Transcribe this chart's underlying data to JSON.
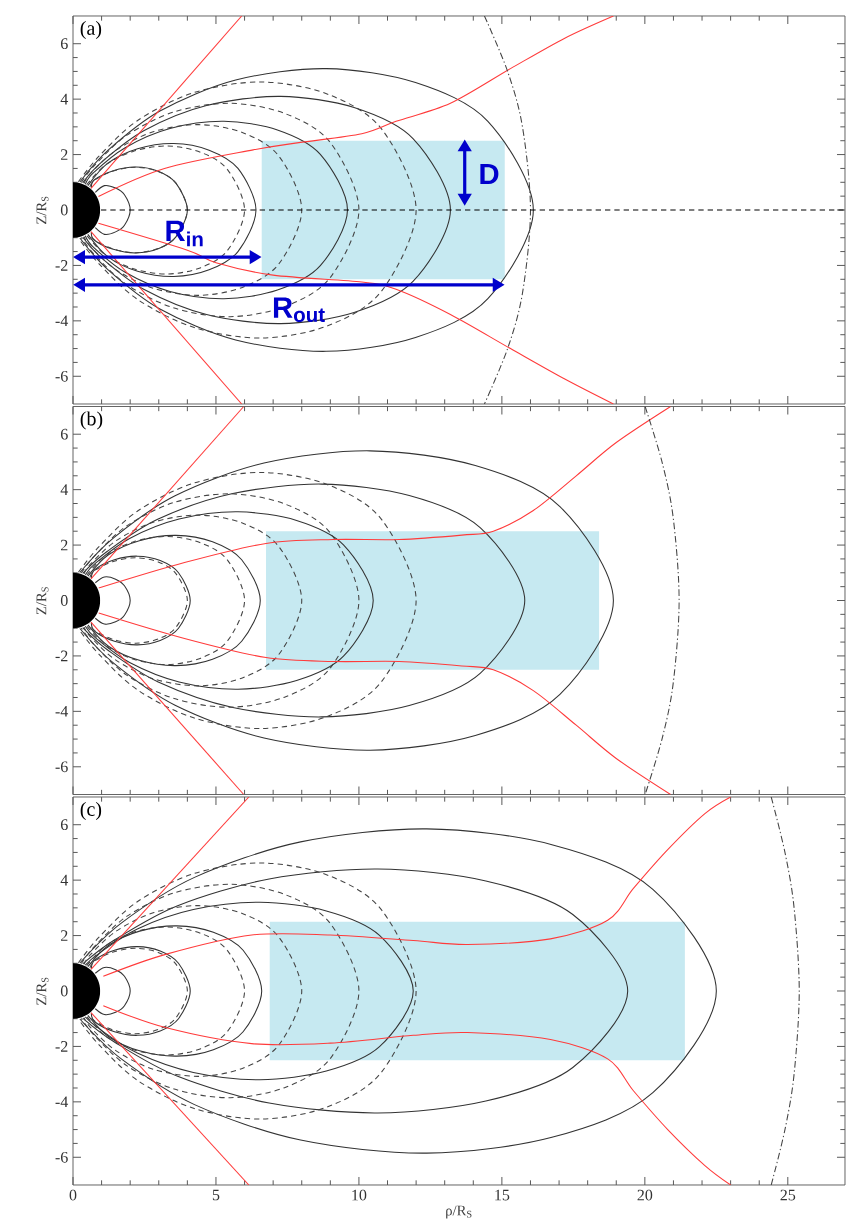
{
  "chart_data": [
    {
      "type": "line",
      "title": "(a)",
      "ylabel": "Z/R$_{S}$",
      "xlim": [
        0,
        27
      ],
      "ylim": [
        -7,
        7
      ],
      "xticks": [
        0,
        5,
        10,
        15,
        20,
        25
      ],
      "yticks": [
        -6,
        -4,
        -2,
        0,
        2,
        4,
        6
      ],
      "tick_labels": "y",
      "ref_lines": [
        {
          "axis": "y",
          "value": 0,
          "color": "#000000",
          "line_style": "dashed"
        }
      ],
      "annotations": [
        "R$_{in}$",
        "R$_{out}$",
        "D"
      ],
      "series": [
        {
          "type": "area",
          "color": "#c6e9f1",
          "x": [
            6.6,
            6.6,
            15.1,
            15.1
          ],
          "values": [
            -2.5,
            2.5,
            2.5,
            -2.5
          ]
        },
        {
          "color": "#333333",
          "x": [
            0.78,
            1.1,
            1.49,
            1.8,
            2.0,
            1.8,
            1.49,
            1.1,
            0.78
          ],
          "values": [
            0.64,
            0.88,
            0.79,
            0.55,
            0,
            -0.55,
            -0.79,
            -0.88,
            -0.64
          ]
        },
        {
          "color": "#333333",
          "x": [
            0.64,
            0.75,
            1.41,
            2.2,
            2.98,
            3.6,
            4.0,
            3.6,
            2.98,
            2.2,
            1.41,
            0.75,
            0.64
          ],
          "values": [
            0.8,
            1.09,
            1.42,
            1.55,
            1.4,
            0.97,
            0,
            -0.97,
            -1.4,
            -1.55,
            -1.42,
            -1.09,
            -0.8
          ]
        },
        {
          "color": "#333333",
          "x": [
            0.52,
            1.21,
            2.26,
            3.52,
            4.76,
            5.77,
            6.4,
            5.77,
            4.76,
            3.52,
            2.26,
            1.21,
            0.52
          ],
          "values": [
            0.88,
            1.68,
            2.21,
            2.4,
            2.16,
            1.5,
            0,
            -1.5,
            -2.16,
            -2.4,
            -2.21,
            -1.68,
            -0.88
          ]
        },
        {
          "color": "#333333",
          "x": [
            0.43,
            0.72,
            1.81,
            3.39,
            5.28,
            7.15,
            8.65,
            9.6,
            8.65,
            7.15,
            5.28,
            3.39,
            1.81,
            0.72,
            0.43
          ],
          "values": [
            0.93,
            1.35,
            2.24,
            2.94,
            3.2,
            2.89,
            2.01,
            0,
            -2.01,
            -2.89,
            -3.2,
            -2.94,
            -2.24,
            -1.35,
            -0.93
          ]
        },
        {
          "color": "#333333",
          "x": [
            0.34,
            1.0,
            2.49,
            4.67,
            7.26,
            9.83,
            11.9,
            13.2,
            11.9,
            9.83,
            7.26,
            4.67,
            2.49,
            1.0,
            0.34
          ],
          "values": [
            0.98,
            1.73,
            2.87,
            3.77,
            4.1,
            3.7,
            2.57,
            0,
            -2.57,
            -3.7,
            -4.1,
            -3.77,
            -2.87,
            -1.73,
            -0.98
          ]
        },
        {
          "color": "#333333",
          "x": [
            0.24,
            1.22,
            3.04,
            5.69,
            8.85,
            11.98,
            14.51,
            16.1,
            14.51,
            11.98,
            8.85,
            5.69,
            3.04,
            1.22,
            0.24
          ],
          "values": [
            1.01,
            2.15,
            3.57,
            4.69,
            5.1,
            4.6,
            3.2,
            0,
            -3.2,
            -4.6,
            -5.1,
            -4.69,
            -3.57,
            -2.15,
            -1.01
          ]
        },
        {
          "color": "#444444",
          "line_style": "dashed",
          "x": [
            0.59,
            0.75,
            1.41,
            2.2,
            2.98,
            3.6,
            4,
            3.6,
            2.98,
            2.2,
            1.41,
            0.75,
            0.59
          ],
          "values": [
            0.83,
            1.08,
            1.41,
            1.54,
            1.39,
            0.97,
            0,
            -0.97,
            -1.39,
            -1.54,
            -1.41,
            -1.08,
            -0.83
          ]
        },
        {
          "color": "#444444",
          "line_style": "dashed",
          "x": [
            0.48,
            1.13,
            2.12,
            3.3,
            4.47,
            5.41,
            6,
            5.41,
            4.47,
            3.3,
            2.12,
            1.13,
            0.48
          ],
          "values": [
            0.91,
            1.62,
            2.12,
            2.31,
            2.08,
            1.45,
            0,
            -1.45,
            -2.08,
            -2.31,
            -2.12,
            -1.62,
            -0.91
          ]
        },
        {
          "color": "#444444",
          "line_style": "dashed",
          "x": [
            0.39,
            0.6,
            1.51,
            2.83,
            4.4,
            5.96,
            7.21,
            8,
            7.21,
            5.96,
            4.4,
            2.83,
            1.51,
            0.6,
            0.39
          ],
          "values": [
            0.96,
            1.3,
            2.16,
            2.83,
            3.08,
            2.78,
            1.93,
            0,
            -1.93,
            -2.78,
            -3.08,
            -2.83,
            -2.16,
            -1.3,
            -0.96
          ]
        },
        {
          "color": "#444444",
          "line_style": "dashed",
          "x": [
            0.29,
            0.76,
            1.89,
            3.54,
            5.5,
            7.44,
            9.01,
            10,
            9.01,
            7.44,
            5.5,
            3.54,
            1.89,
            0.76,
            0.29
          ],
          "values": [
            0.99,
            1.62,
            2.7,
            3.54,
            3.85,
            3.47,
            2.42,
            0,
            -2.42,
            -3.47,
            -3.85,
            -3.54,
            -2.7,
            -1.62,
            -0.99
          ]
        },
        {
          "color": "#444444",
          "line_style": "dashed",
          "x": [
            0.19,
            0.91,
            2.26,
            4.24,
            6.6,
            8.93,
            10.81,
            12,
            10.81,
            8.93,
            6.6,
            4.24,
            2.26,
            0.91,
            0.19
          ],
          "values": [
            1.02,
            1.94,
            3.23,
            4.24,
            4.62,
            4.17,
            2.9,
            0,
            -2.9,
            -4.17,
            -4.62,
            -4.24,
            -3.23,
            -1.94,
            -1.02
          ]
        },
        {
          "color": "#ff3b3b",
          "x": [
            0.63,
            5.9
          ],
          "values": [
            0.78,
            7
          ]
        },
        {
          "color": "#ff3b3b",
          "x": [
            0.63,
            5.9
          ],
          "values": [
            -0.78,
            -7
          ]
        },
        {
          "color": "#ff3b3b",
          "x": [
            0.89,
            3.2,
            6.3,
            7.9,
            10.1,
            11.3,
            13.2,
            15.3,
            17.2,
            18.9
          ],
          "values": [
            0.49,
            1.5,
            2.17,
            2.43,
            2.75,
            3.2,
            3.85,
            5.1,
            6.2,
            7
          ]
        },
        {
          "color": "#ff3b3b",
          "x": [
            0.89,
            4.0,
            5.0,
            7.0,
            10.1,
            11.3,
            13.2,
            15.3,
            17.2,
            18.9
          ],
          "values": [
            -0.48,
            -1.45,
            -1.9,
            -2.35,
            -2.6,
            -2.86,
            -3.77,
            -5.0,
            -6.1,
            -7
          ]
        },
        {
          "color": "#444444",
          "line_style": "dashdot",
          "x": [
            14.39,
            15.2,
            15.72,
            16,
            15.72,
            15.2,
            14.39
          ],
          "values": [
            7,
            5,
            3,
            0,
            -3,
            -5,
            -7
          ]
        }
      ]
    },
    {
      "type": "line",
      "title": "(b)",
      "ylabel": "Z/R$_{S}$",
      "xlim": [
        0,
        27
      ],
      "ylim": [
        -7,
        7
      ],
      "xticks": [
        0,
        5,
        10,
        15,
        20,
        25
      ],
      "yticks": [
        -6,
        -4,
        -2,
        0,
        2,
        4,
        6
      ],
      "tick_labels": "y",
      "series": [
        {
          "type": "area",
          "color": "#c6e9f1",
          "x": [
            6.75,
            6.75,
            18.4,
            18.4
          ],
          "values": [
            -2.5,
            2.5,
            2.5,
            -2.5
          ]
        },
        {
          "color": "#333333",
          "x": [
            0.78,
            1.1,
            1.49,
            1.8,
            2.0,
            1.8,
            1.49,
            1.1,
            0.78
          ],
          "values": [
            0.64,
            0.85,
            0.77,
            0.53,
            0,
            -0.53,
            -0.77,
            -0.85,
            -0.64
          ]
        },
        {
          "color": "#333333",
          "x": [
            0.64,
            0.77,
            1.45,
            2.25,
            3.05,
            3.69,
            4.1,
            3.69,
            3.05,
            2.25,
            1.45,
            0.77,
            0.64
          ],
          "values": [
            0.8,
            1.12,
            1.47,
            1.6,
            1.44,
            1.0,
            0,
            -1.0,
            -1.44,
            -1.6,
            -1.47,
            -1.12,
            -0.8
          ]
        },
        {
          "color": "#333333",
          "x": [
            0.52,
            1.24,
            2.32,
            3.6,
            4.88,
            5.9,
            6.55,
            5.9,
            4.88,
            3.6,
            2.32,
            1.24,
            0.52
          ],
          "values": [
            0.88,
            1.65,
            2.16,
            2.35,
            2.12,
            1.47,
            0,
            -1.47,
            -2.12,
            -2.35,
            -2.16,
            -1.65,
            -0.88
          ]
        },
        {
          "color": "#333333",
          "x": [
            0.43,
            0.79,
            1.98,
            3.71,
            5.77,
            7.82,
            9.46,
            10.5,
            9.46,
            7.82,
            5.77,
            3.71,
            1.98,
            0.79,
            0.43
          ],
          "values": [
            0.93,
            1.35,
            2.24,
            2.94,
            3.2,
            2.89,
            2.01,
            0,
            -2.01,
            -2.89,
            -3.2,
            -2.94,
            -2.24,
            -1.35,
            -0.93
          ]
        },
        {
          "color": "#333333",
          "x": [
            0.34,
            1.19,
            2.98,
            5.59,
            8.69,
            11.76,
            14.24,
            15.8,
            14.24,
            11.76,
            8.69,
            5.59,
            2.98,
            1.19,
            0.34
          ],
          "values": [
            0.98,
            1.77,
            2.94,
            3.86,
            4.2,
            3.79,
            2.63,
            0,
            -2.63,
            -3.79,
            -4.2,
            -3.86,
            -2.94,
            -1.77,
            -0.98
          ]
        },
        {
          "color": "#333333",
          "x": [
            0.24,
            1.43,
            3.57,
            6.68,
            10.39,
            14.07,
            17.03,
            18.9,
            17.03,
            14.07,
            10.39,
            6.68,
            3.57,
            1.43,
            0.24
          ],
          "values": [
            1.01,
            2.27,
            3.78,
            4.96,
            5.4,
            4.87,
            3.39,
            0,
            -3.39,
            -4.87,
            -5.4,
            -4.96,
            -3.78,
            -2.27,
            -1.01
          ]
        },
        {
          "color": "#444444",
          "line_style": "dashed",
          "x": [
            0.59,
            0.75,
            1.41,
            2.2,
            2.98,
            3.6,
            4,
            3.6,
            2.98,
            2.2,
            1.41,
            0.75,
            0.59
          ],
          "values": [
            0.83,
            1.08,
            1.41,
            1.54,
            1.39,
            0.97,
            0,
            -0.97,
            -1.39,
            -1.54,
            -1.41,
            -1.08,
            -0.83
          ]
        },
        {
          "color": "#444444",
          "line_style": "dashed",
          "x": [
            0.48,
            1.13,
            2.12,
            3.3,
            4.47,
            5.41,
            6,
            5.41,
            4.47,
            3.3,
            2.12,
            1.13,
            0.48
          ],
          "values": [
            0.91,
            1.62,
            2.12,
            2.31,
            2.08,
            1.45,
            0,
            -1.45,
            -2.08,
            -2.31,
            -2.12,
            -1.62,
            -0.91
          ]
        },
        {
          "color": "#444444",
          "line_style": "dashed",
          "x": [
            0.39,
            0.6,
            1.51,
            2.83,
            4.4,
            5.96,
            7.21,
            8,
            7.21,
            5.96,
            4.4,
            2.83,
            1.51,
            0.6,
            0.39
          ],
          "values": [
            0.96,
            1.3,
            2.16,
            2.83,
            3.08,
            2.78,
            1.93,
            0,
            -1.93,
            -2.78,
            -3.08,
            -2.83,
            -2.16,
            -1.3,
            -0.96
          ]
        },
        {
          "color": "#444444",
          "line_style": "dashed",
          "x": [
            0.29,
            0.76,
            1.89,
            3.54,
            5.5,
            7.44,
            9.01,
            10,
            9.01,
            7.44,
            5.5,
            3.54,
            1.89,
            0.76,
            0.29
          ],
          "values": [
            0.99,
            1.62,
            2.7,
            3.54,
            3.85,
            3.47,
            2.42,
            0,
            -2.42,
            -3.47,
            -3.85,
            -3.54,
            -2.7,
            -1.62,
            -0.99
          ]
        },
        {
          "color": "#444444",
          "line_style": "dashed",
          "x": [
            0.19,
            0.91,
            2.26,
            4.24,
            6.6,
            8.93,
            10.81,
            12,
            10.81,
            8.93,
            6.6,
            4.24,
            2.26,
            0.91,
            0.19
          ],
          "values": [
            1.02,
            1.94,
            3.23,
            4.24,
            4.62,
            4.17,
            2.9,
            0,
            -2.9,
            -4.17,
            -4.62,
            -4.24,
            -3.23,
            -1.94,
            -1.02
          ]
        },
        {
          "color": "#ff3b3b",
          "x": [
            0.63,
            5.97
          ],
          "values": [
            0.78,
            7
          ]
        },
        {
          "color": "#ff3b3b",
          "x": [
            0.63,
            5.97
          ],
          "values": [
            -0.78,
            -7
          ]
        },
        {
          "color": "#ff3b3b",
          "x": [
            0.9,
            3.9,
            6.75,
            9.1,
            11.4,
            13.6,
            14.7,
            16.1,
            17.6,
            19.0,
            20.9
          ],
          "values": [
            0.45,
            1.37,
            2.06,
            2.2,
            2.2,
            2.36,
            2.5,
            3.25,
            4.5,
            5.7,
            7
          ]
        },
        {
          "color": "#ff3b3b",
          "x": [
            0.9,
            3.9,
            6.75,
            9.1,
            11.4,
            13.6,
            14.7,
            16.1,
            17.6,
            19.0,
            20.9
          ],
          "values": [
            -0.45,
            -1.37,
            -2.06,
            -2.2,
            -2.2,
            -2.36,
            -2.5,
            -3.25,
            -4.5,
            -5.7,
            -7
          ]
        },
        {
          "color": "#444444",
          "line_style": "dashdot",
          "x": [
            20.01,
            20.6,
            20.99,
            21.2,
            20.99,
            20.6,
            20.01
          ],
          "values": [
            7,
            5,
            3,
            0,
            -3,
            -5,
            -7
          ]
        }
      ]
    },
    {
      "type": "line",
      "title": "(c)",
      "xlabel": "ρ/R$_{S}$",
      "ylabel": "Z/R$_{S}$",
      "xlim": [
        0,
        27
      ],
      "ylim": [
        -7,
        7
      ],
      "xticks": [
        0,
        5,
        10,
        15,
        20,
        25
      ],
      "yticks": [
        -6,
        -4,
        -2,
        0,
        2,
        4,
        6
      ],
      "series": [
        {
          "type": "area",
          "color": "#c6e9f1",
          "x": [
            6.88,
            6.88,
            21.4,
            21.4
          ],
          "values": [
            -2.5,
            2.5,
            2.5,
            -2.5
          ]
        },
        {
          "color": "#333333",
          "x": [
            0.78,
            1.1,
            1.49,
            1.8,
            2.0,
            1.8,
            1.49,
            1.1,
            0.78
          ],
          "values": [
            0.64,
            0.85,
            0.77,
            0.53,
            0,
            -0.53,
            -0.77,
            -0.85,
            -0.64
          ]
        },
        {
          "color": "#333333",
          "x": [
            0.64,
            0.77,
            1.45,
            2.25,
            3.05,
            3.69,
            4.1,
            3.69,
            3.05,
            2.25,
            1.45,
            0.77,
            0.64
          ],
          "values": [
            0.8,
            1.12,
            1.47,
            1.6,
            1.44,
            1.0,
            0,
            -1.0,
            -1.44,
            -1.6,
            -1.47,
            -1.12,
            -0.8
          ]
        },
        {
          "color": "#333333",
          "x": [
            0.52,
            1.25,
            2.33,
            3.63,
            4.91,
            5.95,
            6.6,
            5.95,
            4.91,
            3.63,
            2.33,
            1.25,
            0.52
          ],
          "values": [
            0.88,
            1.65,
            2.16,
            2.35,
            2.12,
            1.47,
            0,
            -1.47,
            -2.12,
            -2.35,
            -2.16,
            -1.65,
            -0.88
          ]
        },
        {
          "color": "#333333",
          "x": [
            0.43,
            0.9,
            2.25,
            4.21,
            6.54,
            8.86,
            10.72,
            11.9,
            10.72,
            8.86,
            6.54,
            4.21,
            2.25,
            0.9,
            0.43
          ],
          "values": [
            0.93,
            1.35,
            2.24,
            2.94,
            3.2,
            2.89,
            2.01,
            0,
            -2.01,
            -2.89,
            -3.2,
            -2.94,
            -2.24,
            -1.35,
            -0.93
          ]
        },
        {
          "color": "#333333",
          "x": [
            0.34,
            1.46,
            3.66,
            6.86,
            10.66,
            14.44,
            17.48,
            19.4,
            17.48,
            14.44,
            10.66,
            6.86,
            3.66,
            1.46,
            0.34
          ],
          "values": [
            0.98,
            1.85,
            3.08,
            4.04,
            4.4,
            3.97,
            2.76,
            0,
            -2.76,
            -3.97,
            -4.4,
            -4.04,
            -3.08,
            -1.85,
            -0.98
          ]
        },
        {
          "color": "#333333",
          "x": [
            0.24,
            1.7,
            4.25,
            7.96,
            12.37,
            16.75,
            20.28,
            22.5,
            20.28,
            16.75,
            12.37,
            7.96,
            4.25,
            1.7,
            0.24
          ],
          "values": [
            1.01,
            2.46,
            4.1,
            5.38,
            5.85,
            5.28,
            3.67,
            0,
            -3.67,
            -5.28,
            -5.85,
            -5.38,
            -4.1,
            -2.46,
            -1.01
          ]
        },
        {
          "color": "#444444",
          "line_style": "dashed",
          "x": [
            0.59,
            0.75,
            1.41,
            2.2,
            2.98,
            3.6,
            4,
            3.6,
            2.98,
            2.2,
            1.41,
            0.75,
            0.59
          ],
          "values": [
            0.83,
            1.08,
            1.41,
            1.54,
            1.39,
            0.97,
            0,
            -0.97,
            -1.39,
            -1.54,
            -1.41,
            -1.08,
            -0.83
          ]
        },
        {
          "color": "#444444",
          "line_style": "dashed",
          "x": [
            0.48,
            1.13,
            2.12,
            3.3,
            4.47,
            5.41,
            6,
            5.41,
            4.47,
            3.3,
            2.12,
            1.13,
            0.48
          ],
          "values": [
            0.91,
            1.62,
            2.12,
            2.31,
            2.08,
            1.45,
            0,
            -1.45,
            -2.08,
            -2.31,
            -2.12,
            -1.62,
            -0.91
          ]
        },
        {
          "color": "#444444",
          "line_style": "dashed",
          "x": [
            0.39,
            0.6,
            1.51,
            2.83,
            4.4,
            5.96,
            7.21,
            8,
            7.21,
            5.96,
            4.4,
            2.83,
            1.51,
            0.6,
            0.39
          ],
          "values": [
            0.96,
            1.3,
            2.16,
            2.83,
            3.08,
            2.78,
            1.93,
            0,
            -1.93,
            -2.78,
            -3.08,
            -2.83,
            -2.16,
            -1.3,
            -0.96
          ]
        },
        {
          "color": "#444444",
          "line_style": "dashed",
          "x": [
            0.29,
            0.76,
            1.89,
            3.54,
            5.5,
            7.44,
            9.01,
            10,
            9.01,
            7.44,
            5.5,
            3.54,
            1.89,
            0.76,
            0.29
          ],
          "values": [
            0.99,
            1.62,
            2.7,
            3.54,
            3.85,
            3.47,
            2.42,
            0,
            -2.42,
            -3.47,
            -3.85,
            -3.54,
            -2.7,
            -1.62,
            -0.99
          ]
        },
        {
          "color": "#444444",
          "line_style": "dashed",
          "x": [
            0.19,
            0.91,
            2.26,
            4.24,
            6.6,
            8.93,
            10.81,
            12,
            10.81,
            8.93,
            6.6,
            4.24,
            2.26,
            0.91,
            0.19
          ],
          "values": [
            1.02,
            1.94,
            3.23,
            4.24,
            4.62,
            4.17,
            2.9,
            0,
            -2.9,
            -4.17,
            -4.62,
            -4.24,
            -3.23,
            -1.94,
            -1.02
          ]
        },
        {
          "color": "#ff3b3b",
          "x": [
            0.63,
            6.15
          ],
          "values": [
            0.78,
            7
          ]
        },
        {
          "color": "#ff3b3b",
          "x": [
            0.63,
            6.15
          ],
          "values": [
            -0.78,
            -7
          ]
        },
        {
          "color": "#ff3b3b",
          "x": [
            1.06,
            3.27,
            6.25,
            9.0,
            11.9,
            13.8,
            16.7,
            18.7,
            19.6,
            20.8,
            22.1,
            23.0
          ],
          "values": [
            0.53,
            1.33,
            2.02,
            2.02,
            1.82,
            1.68,
            1.88,
            2.55,
            3.7,
            5.1,
            6.4,
            7
          ]
        },
        {
          "color": "#ff3b3b",
          "x": [
            1.06,
            3.27,
            6.25,
            9.0,
            11.9,
            13.8,
            16.7,
            18.7,
            19.6,
            20.8,
            22.1,
            23.0
          ],
          "values": [
            -0.53,
            -1.33,
            -1.9,
            -1.88,
            -1.6,
            -1.5,
            -1.75,
            -2.45,
            -3.6,
            -5.0,
            -6.3,
            -7
          ]
        },
        {
          "color": "#444444",
          "line_style": "dashdot",
          "x": [
            24.42,
            24.9,
            25.22,
            25.4,
            25.22,
            24.9,
            24.42
          ],
          "values": [
            7,
            5,
            3,
            0,
            -3,
            -5,
            -7
          ]
        }
      ]
    }
  ]
}
